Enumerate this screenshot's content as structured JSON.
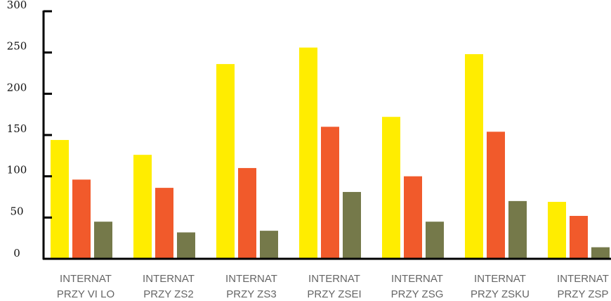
{
  "chart_data": {
    "type": "bar",
    "categories": [
      [
        "INTERNAT",
        "PRZY VI LO"
      ],
      [
        "INTERNAT",
        "PRZY ZS2"
      ],
      [
        "INTERNAT",
        "PRZY ZS3"
      ],
      [
        "INTERNAT",
        "PRZY ZSEI"
      ],
      [
        "INTERNAT",
        "PRZY ZSG"
      ],
      [
        "INTERNAT",
        "PRZY ZSKU"
      ],
      [
        "INTERNAT",
        "PRZY ZSP"
      ]
    ],
    "series": [
      {
        "color": "#ffed00",
        "values": [
          144,
          126,
          236,
          256,
          172,
          248,
          69
        ]
      },
      {
        "color": "#f15a2b",
        "values": [
          96,
          86,
          110,
          160,
          100,
          154,
          52
        ]
      },
      {
        "color": "#75794a",
        "values": [
          45,
          32,
          34,
          81,
          45,
          70,
          14
        ]
      }
    ],
    "title": "",
    "xlabel": "",
    "ylabel": "",
    "ylim": [
      0,
      300
    ],
    "yticks": [
      0,
      50,
      100,
      150,
      200,
      250,
      300
    ],
    "grid": false,
    "legend": "none"
  }
}
